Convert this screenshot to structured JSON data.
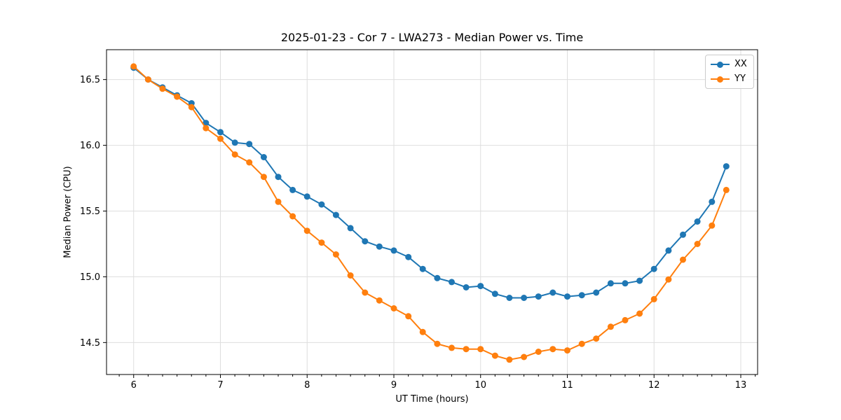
{
  "figure": {
    "background": "#ffffff"
  },
  "chart_data": {
    "type": "line",
    "title": "2025-01-23 - Cor 7 - LWA273 - Median Power vs. Time",
    "xlabel": "UT Time (hours)",
    "ylabel": "Median Power (CPU)",
    "xlim": [
      5.687,
      13.194
    ],
    "ylim": [
      14.257,
      16.727
    ],
    "x_ticks": [
      6,
      7,
      8,
      9,
      10,
      11,
      12,
      13
    ],
    "x_tick_labels": [
      "6",
      "7",
      "8",
      "9",
      "10",
      "11",
      "12",
      "13"
    ],
    "x_minor_tick_step": 0.166667,
    "y_ticks": [
      14.5,
      15.0,
      15.5,
      16.0,
      16.5
    ],
    "y_tick_labels": [
      "14.5",
      "15.0",
      "15.5",
      "16.0",
      "16.5"
    ],
    "grid": true,
    "grid_color": "#dedede",
    "spine_color": "#000000",
    "legend": {
      "position": "upper right",
      "entries": [
        "XX",
        "YY"
      ]
    },
    "x": [
      6.0,
      6.167,
      6.333,
      6.5,
      6.667,
      6.833,
      7.0,
      7.167,
      7.333,
      7.5,
      7.667,
      7.833,
      8.0,
      8.167,
      8.333,
      8.5,
      8.667,
      8.833,
      9.0,
      9.167,
      9.333,
      9.5,
      9.667,
      9.833,
      10.0,
      10.167,
      10.333,
      10.5,
      10.667,
      10.833,
      11.0,
      11.167,
      11.333,
      11.5,
      11.667,
      11.833,
      12.0,
      12.167,
      12.333,
      12.5,
      12.667,
      12.833
    ],
    "series": [
      {
        "name": "XX",
        "color": "#1f77b4",
        "values": [
          16.59,
          16.5,
          16.44,
          16.38,
          16.32,
          16.17,
          16.1,
          16.02,
          16.01,
          15.91,
          15.76,
          15.66,
          15.61,
          15.55,
          15.47,
          15.37,
          15.27,
          15.23,
          15.2,
          15.15,
          15.06,
          14.99,
          14.96,
          14.92,
          14.93,
          14.87,
          14.84,
          14.84,
          14.85,
          14.88,
          14.85,
          14.86,
          14.88,
          14.95,
          14.95,
          14.97,
          15.06,
          15.2,
          15.32,
          15.42,
          15.57,
          15.84
        ]
      },
      {
        "name": "YY",
        "color": "#ff7f0e",
        "values": [
          16.6,
          16.5,
          16.43,
          16.37,
          16.29,
          16.13,
          16.05,
          15.93,
          15.87,
          15.76,
          15.57,
          15.46,
          15.35,
          15.26,
          15.17,
          15.01,
          14.88,
          14.82,
          14.76,
          14.7,
          14.58,
          14.49,
          14.46,
          14.45,
          14.45,
          14.4,
          14.37,
          14.39,
          14.43,
          14.45,
          14.44,
          14.49,
          14.53,
          14.62,
          14.67,
          14.72,
          14.83,
          14.98,
          15.13,
          15.25,
          15.39,
          15.66
        ]
      }
    ]
  }
}
